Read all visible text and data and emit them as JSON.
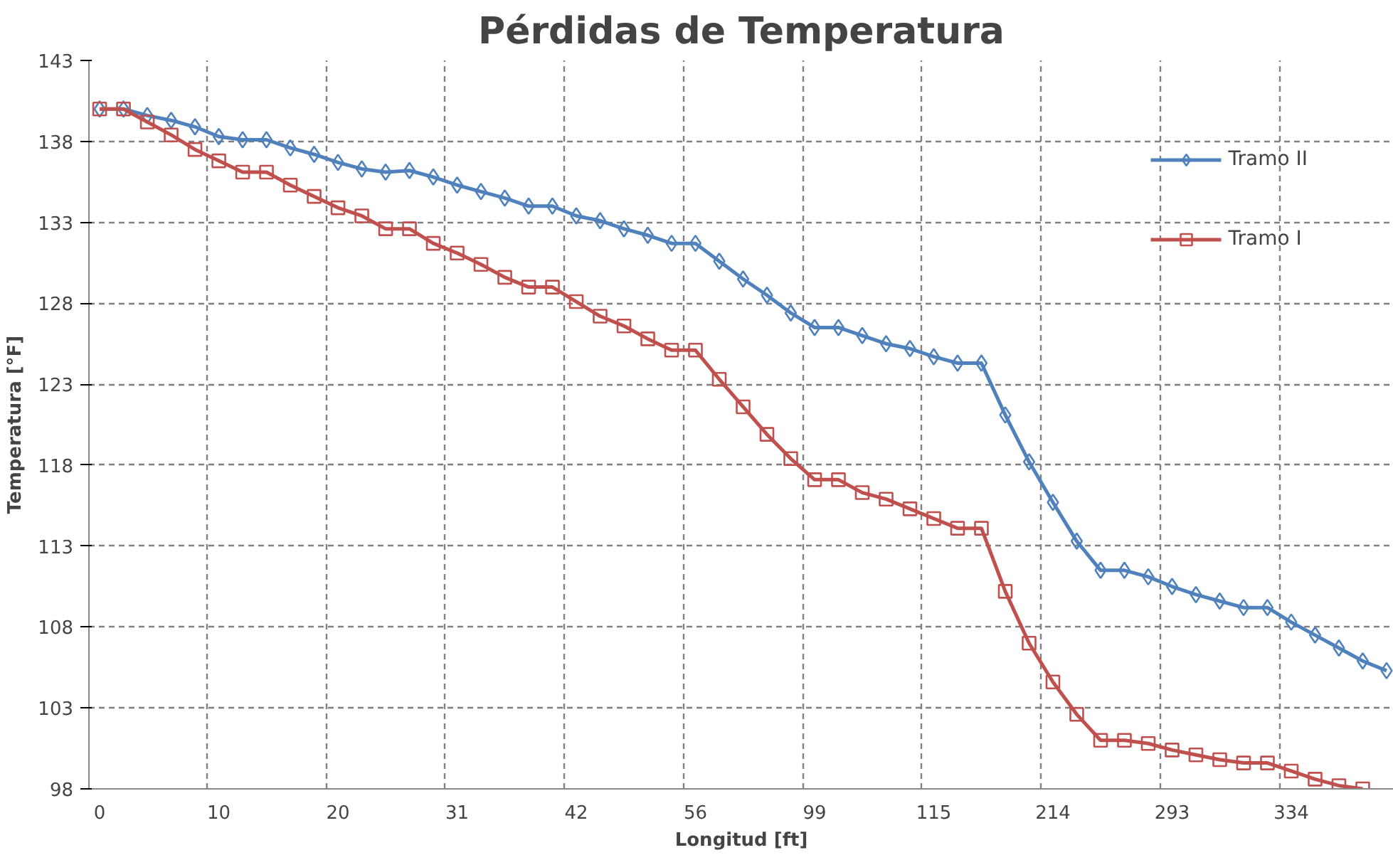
{
  "chart_data": {
    "type": "line",
    "title": "Pérdidas de Temperatura",
    "xlabel": "Longitud [ft]",
    "ylabel": "Temperatura [°F]",
    "categories": [
      "0",
      null,
      null,
      null,
      null,
      "10",
      null,
      null,
      null,
      null,
      "20",
      null,
      null,
      null,
      null,
      "31",
      null,
      null,
      null,
      null,
      "42",
      null,
      null,
      null,
      null,
      "56",
      null,
      null,
      null,
      null,
      "99",
      null,
      null,
      null,
      null,
      "115",
      null,
      null,
      null,
      null,
      "214",
      null,
      null,
      null,
      null,
      "293",
      null,
      null,
      null,
      null,
      "334",
      null,
      null,
      null,
      null
    ],
    "series": [
      {
        "name": "Tramo II",
        "color": "#4f81bd",
        "marker": "diamond",
        "values": [
          140.0,
          140.0,
          139.6,
          139.3,
          138.9,
          138.3,
          138.1,
          138.1,
          137.6,
          137.2,
          136.7,
          136.3,
          136.1,
          136.2,
          135.8,
          135.3,
          134.9,
          134.5,
          134.0,
          134.0,
          133.4,
          133.1,
          132.6,
          132.2,
          131.7,
          131.7,
          130.6,
          129.5,
          128.5,
          127.4,
          126.5,
          126.5,
          126.0,
          125.5,
          125.2,
          124.7,
          124.3,
          124.3,
          121.1,
          118.2,
          115.7,
          113.3,
          111.5,
          111.5,
          111.1,
          110.5,
          110.0,
          109.6,
          109.2,
          109.2,
          108.3,
          107.5,
          106.7,
          105.9,
          105.3
        ]
      },
      {
        "name": "Tramo I",
        "color": "#c0504d",
        "marker": "square",
        "values": [
          140.0,
          140.0,
          139.2,
          138.4,
          137.5,
          136.8,
          136.1,
          136.1,
          135.3,
          134.6,
          133.9,
          133.4,
          132.6,
          132.6,
          131.7,
          131.1,
          130.4,
          129.6,
          129.0,
          129.0,
          128.1,
          127.2,
          126.6,
          125.8,
          125.1,
          125.1,
          123.3,
          121.6,
          119.9,
          118.4,
          117.1,
          117.1,
          116.3,
          115.9,
          115.3,
          114.7,
          114.1,
          114.1,
          110.2,
          107.0,
          104.6,
          102.6,
          101.0,
          101.0,
          100.8,
          100.4,
          100.1,
          99.8,
          99.6,
          99.6,
          99.1,
          98.6,
          98.2,
          98.0,
          null
        ]
      }
    ],
    "ylim": [
      98,
      143
    ],
    "yticks": [
      98,
      103,
      108,
      113,
      118,
      123,
      128,
      133,
      138,
      143
    ],
    "grid": true,
    "legend": "top right",
    "line_style": "solid"
  }
}
